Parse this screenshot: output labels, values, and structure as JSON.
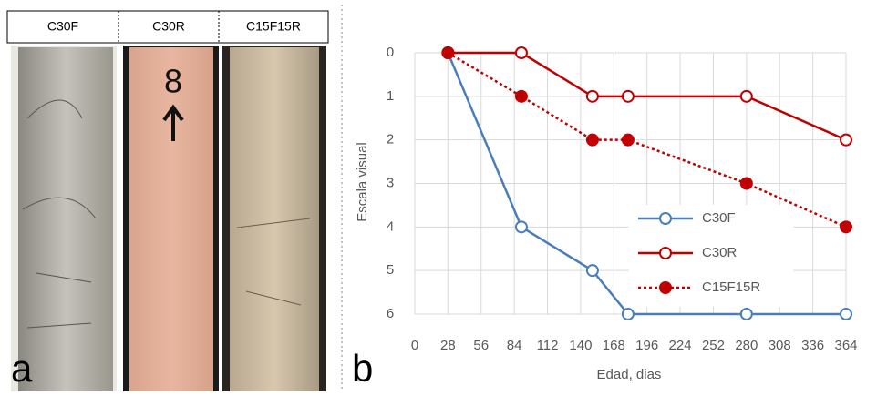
{
  "panels": {
    "headers": [
      "C30F",
      "C30R",
      "C15F15R"
    ],
    "photo_marking": "8",
    "label_a": "a",
    "label_b": "b"
  },
  "chart_data": {
    "type": "line",
    "x": [
      28,
      90,
      150,
      180,
      280,
      364
    ],
    "series": [
      {
        "name": "C30F",
        "color": "#4a7ebb",
        "marker": "open",
        "dash": "solid",
        "values": [
          0,
          4,
          5,
          6,
          6,
          6
        ]
      },
      {
        "name": "C30R",
        "color": "#c00000",
        "marker": "open",
        "dash": "solid",
        "values": [
          0,
          0,
          1,
          1,
          1,
          2
        ]
      },
      {
        "name": "C15F15R",
        "color": "#c00000",
        "marker": "filled",
        "dash": "dotted",
        "values": [
          0,
          1,
          2,
          2,
          3,
          4
        ]
      }
    ],
    "xlim": [
      0,
      364
    ],
    "xticks": [
      0,
      28,
      56,
      84,
      112,
      140,
      168,
      196,
      224,
      252,
      280,
      308,
      336,
      364
    ],
    "ylim": [
      6,
      0
    ],
    "yticks": [
      0,
      1,
      2,
      3,
      4,
      5,
      6
    ],
    "xlabel": "Edad, dias",
    "ylabel": "Escala visual",
    "grid": true,
    "legend": "lower right"
  }
}
